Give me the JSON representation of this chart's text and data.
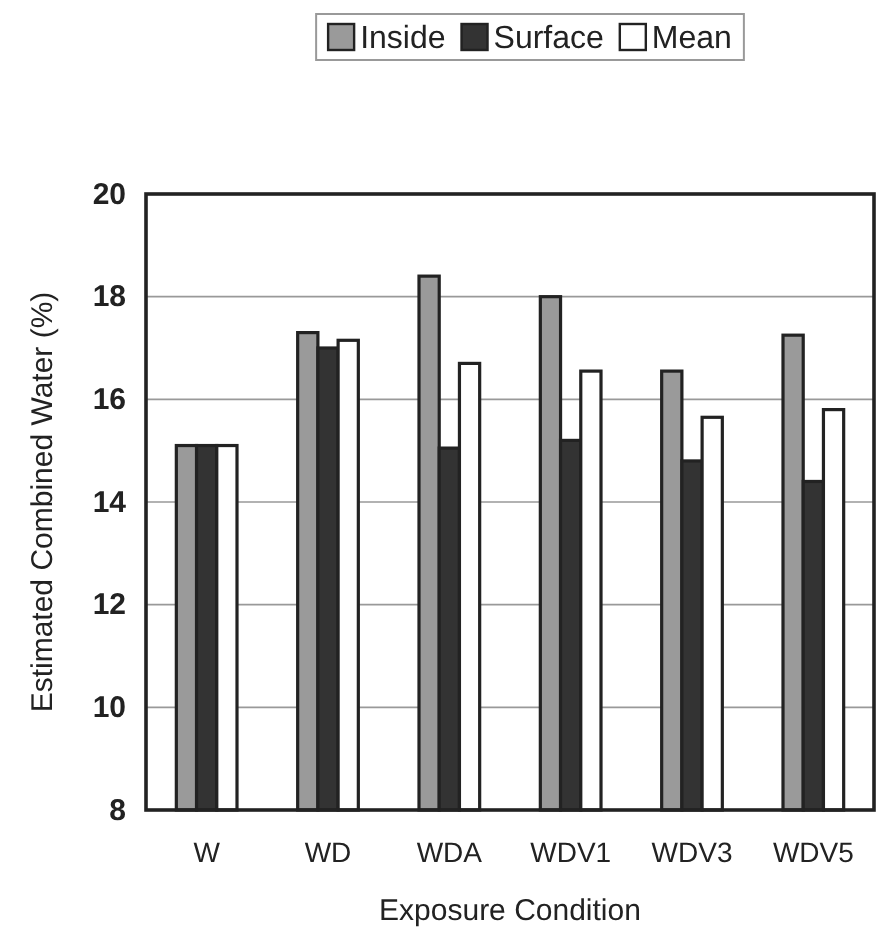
{
  "chart_data": {
    "type": "bar",
    "xlabel": "Exposure Condition",
    "ylabel": "Estimated Combined Water (%)",
    "categories": [
      "W",
      "WD",
      "WDA",
      "WDV1",
      "WDV3",
      "WDV5"
    ],
    "series": [
      {
        "name": "Inside",
        "color": "#9a9a9a",
        "values": [
          15.1,
          17.3,
          18.4,
          18.0,
          16.55,
          17.25
        ]
      },
      {
        "name": "Surface",
        "color": "#333333",
        "values": [
          15.1,
          17.0,
          15.05,
          15.2,
          14.8,
          14.4
        ]
      },
      {
        "name": "Mean",
        "color": "#ffffff",
        "values": [
          15.1,
          17.15,
          16.7,
          16.55,
          15.65,
          15.8
        ]
      }
    ],
    "ylim": [
      8,
      20
    ],
    "yticks": [
      8,
      10,
      12,
      14,
      16,
      18,
      20
    ],
    "grid": "y",
    "legend": "top"
  }
}
